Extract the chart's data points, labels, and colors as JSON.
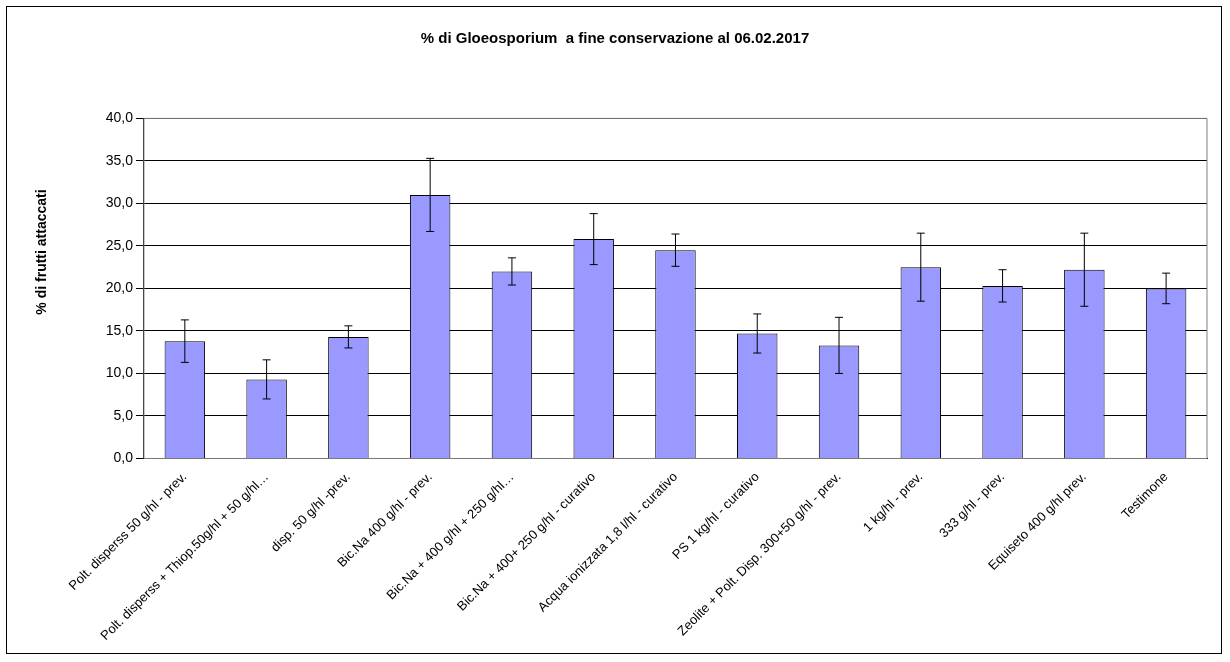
{
  "chart_data": {
    "type": "bar",
    "title": "% di Gloeosporium  a fine conservazione al 06.02.2017",
    "ylabel": "% di frutti attaccati",
    "categories": [
      "Polt. disperss 50 g/hl - prev.",
      "Polt. disperss + Thiop.50g/hl + 50 g/hl…",
      "disp. 50 g/hl -prev.",
      "Bic.Na 400 g/hl - prev.",
      "Bic.Na + 400 g/hl + 250 g/hl…",
      "Bic.Na + 400+ 250 g/hl - curativo",
      "Acqua ionizzata 1,8 l/hl - curativo",
      "PS 1 kg/hl - curativo",
      "Zeolite + Polt. Disp. 300+50 g/hl - prev.",
      "1 kg/hl - prev.",
      "333 g/hl - prev.",
      "Equiseto 400 g/hl prev.",
      "Testimone"
    ],
    "values": [
      13.8,
      9.3,
      14.3,
      31.0,
      22.0,
      25.8,
      24.5,
      14.7,
      13.3,
      22.5,
      20.3,
      22.2,
      20.0
    ],
    "errors": [
      2.5,
      2.3,
      1.3,
      4.3,
      1.6,
      3.0,
      1.9,
      2.3,
      3.3,
      4.0,
      1.9,
      4.3,
      1.8
    ],
    "color": "#9999ff",
    "ylim": [
      0,
      40
    ],
    "yticks": [
      {
        "value": 0,
        "label": "0,0"
      },
      {
        "value": 5,
        "label": "5,0"
      },
      {
        "value": 10,
        "label": "10,0"
      },
      {
        "value": 15,
        "label": "15,0"
      },
      {
        "value": 20,
        "label": "20,0"
      },
      {
        "value": 25,
        "label": "25,0"
      },
      {
        "value": 30,
        "label": "30,0"
      },
      {
        "value": 35,
        "label": "35,0"
      },
      {
        "value": 40,
        "label": "40,0"
      }
    ],
    "grid": "y"
  }
}
